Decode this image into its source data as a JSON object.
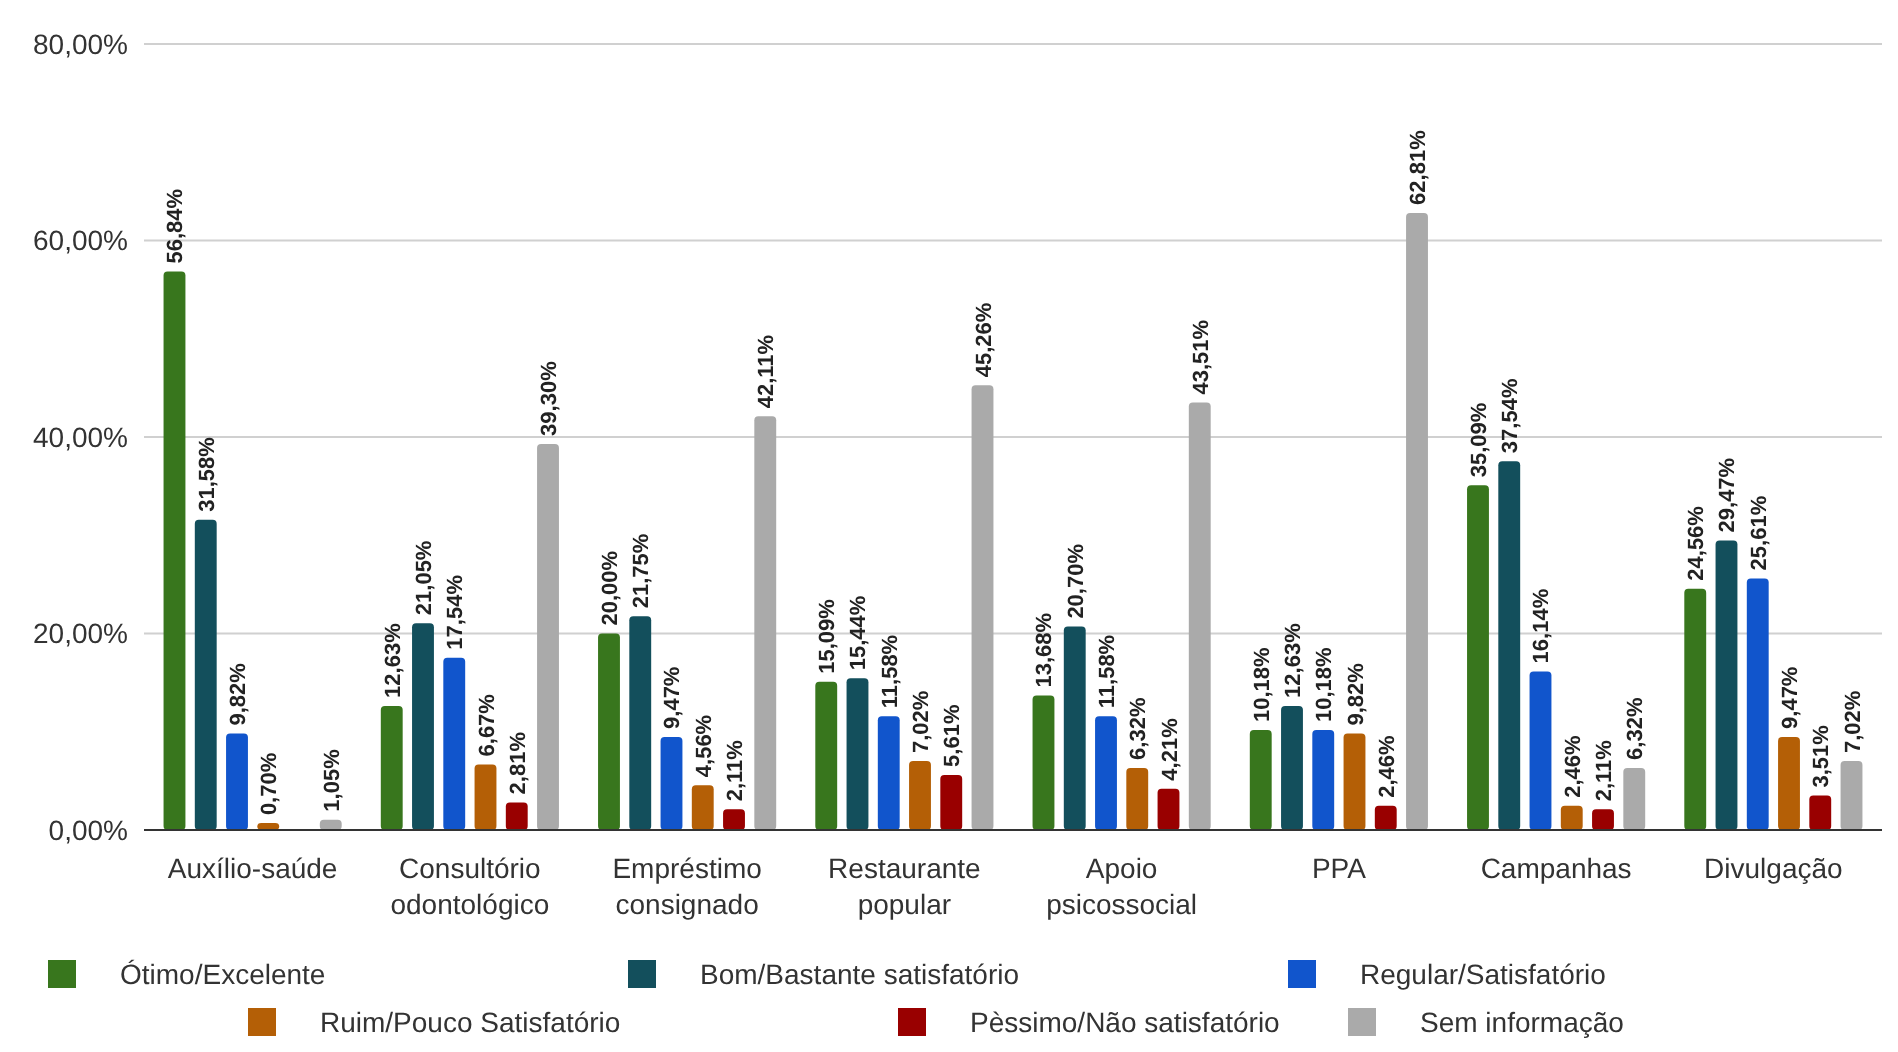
{
  "chart_data": {
    "type": "bar",
    "categories": [
      "Auxílio-saúde",
      "Consultório odontológico",
      "Empréstimo consignado",
      "Restaurante popular",
      "Apoio psicossocial",
      "PPA",
      "Campanhas",
      "Divulgação"
    ],
    "series": [
      {
        "name": "Ótimo/Excelente",
        "color": "#38761d",
        "values": [
          56.84,
          12.63,
          20.0,
          15.09,
          13.68,
          10.18,
          35.09,
          24.56
        ],
        "value_labels": [
          "56,84%",
          "12,63%",
          "20,00%",
          "15,09%",
          "13,68%",
          "10,18%",
          "35,09%",
          "24,56%"
        ]
      },
      {
        "name": "Bom/Bastante satisfatório",
        "color": "#134f5c",
        "values": [
          31.58,
          21.05,
          21.75,
          15.44,
          20.7,
          12.63,
          37.54,
          29.47
        ],
        "value_labels": [
          "31,58%",
          "21,05%",
          "21,75%",
          "15,44%",
          "20,70%",
          "12,63%",
          "37,54%",
          "29,47%"
        ]
      },
      {
        "name": "Regular/Satisfatório",
        "color": "#1155cc",
        "values": [
          9.82,
          17.54,
          9.47,
          11.58,
          11.58,
          10.18,
          16.14,
          25.61
        ],
        "value_labels": [
          "9,82%",
          "17,54%",
          "9,47%",
          "11,58%",
          "11,58%",
          "10,18%",
          "16,14%",
          "25,61%"
        ]
      },
      {
        "name": "Ruim/Pouco Satisfatório",
        "color": "#b45f06",
        "values": [
          0.7,
          6.67,
          4.56,
          7.02,
          6.32,
          9.82,
          2.46,
          9.47
        ],
        "value_labels": [
          "0,70%",
          "6,67%",
          "4,56%",
          "7,02%",
          "6,32%",
          "9,82%",
          "2,46%",
          "9,47%"
        ]
      },
      {
        "name": "Pèssimo/Não satisfatório",
        "color": "#990000",
        "values": [
          0.0,
          2.81,
          2.11,
          5.61,
          4.21,
          2.46,
          2.11,
          3.51
        ],
        "value_labels": [
          null,
          "2,81%",
          "2,11%",
          "5,61%",
          "4,21%",
          "2,46%",
          "2,11%",
          "3,51%"
        ]
      },
      {
        "name": "Sem informação",
        "color": "#aaaaaa",
        "values": [
          1.05,
          39.3,
          42.11,
          45.26,
          43.51,
          62.81,
          6.32,
          7.02
        ],
        "value_labels": [
          "1,05%",
          "39,30%",
          "42,11%",
          "45,26%",
          "43,51%",
          "62,81%",
          "6,32%",
          "7,02%"
        ]
      }
    ],
    "ylim": [
      0,
      80
    ],
    "yticks": [
      {
        "value": 0,
        "label": "0,00%"
      },
      {
        "value": 20,
        "label": "20,00%"
      },
      {
        "value": 40,
        "label": "40,00%"
      },
      {
        "value": 60,
        "label": "60,00%"
      },
      {
        "value": 80,
        "label": "80,00%"
      }
    ],
    "grid": "y",
    "legend": "bottom"
  }
}
